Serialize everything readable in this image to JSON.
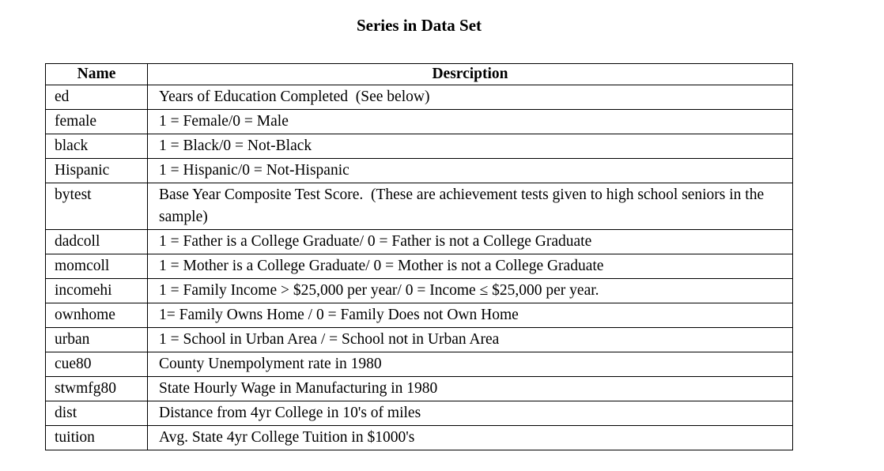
{
  "page": {
    "title": "Series in Data Set"
  },
  "table": {
    "headers": {
      "name": "Name",
      "description": "Desrciption"
    },
    "rows": [
      {
        "name": "ed",
        "description": "Years of Education Completed  (See below)"
      },
      {
        "name": "female",
        "description": "1 = Female/0 = Male"
      },
      {
        "name": "black",
        "description": "1 = Black/0 = Not-Black"
      },
      {
        "name": "Hispanic",
        "description": "1 = Hispanic/0 = Not-Hispanic"
      },
      {
        "name": "bytest",
        "description": "Base Year Composite Test Score.  (These are achievement tests given to high school seniors in the sample)"
      },
      {
        "name": "dadcoll",
        "description": "1 = Father is a College Graduate/ 0 = Father is not a College Graduate"
      },
      {
        "name": "momcoll",
        "description": "1 = Mother is a College Graduate/ 0 = Mother is not a College Graduate"
      },
      {
        "name": "incomehi",
        "description": "1 = Family Income > $25,000 per year/ 0 = Income ≤ $25,000 per year."
      },
      {
        "name": "ownhome",
        "description": "1= Family Owns Home / 0 = Family Does not Own Home"
      },
      {
        "name": "urban",
        "description": "1 = School in Urban Area / = School not in Urban Area"
      },
      {
        "name": "cue80",
        "description": "County Unempolyment rate in 1980"
      },
      {
        "name": "stwmfg80",
        "description": "State Hourly Wage in Manufacturing in 1980"
      },
      {
        "name": "dist",
        "description": "Distance from 4yr College in 10's of miles"
      },
      {
        "name": "tuition",
        "description": "Avg. State 4yr College Tuition in $1000's"
      }
    ]
  }
}
